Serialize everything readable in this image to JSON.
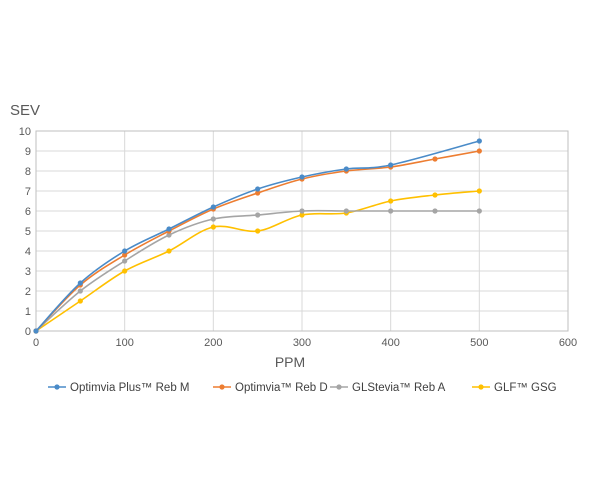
{
  "chart_data": {
    "type": "line",
    "title": "",
    "xlabel": "PPM",
    "ylabel": "SEV",
    "xlim": [
      0,
      600
    ],
    "ylim": [
      0,
      10
    ],
    "xticks": [
      "0",
      "100",
      "200",
      "300",
      "400",
      "500",
      "600"
    ],
    "yticks": [
      "0",
      "1",
      "2",
      "3",
      "4",
      "5",
      "6",
      "7",
      "8",
      "9",
      "10"
    ],
    "grid": true,
    "legend_position": "bottom",
    "series": [
      {
        "name": "Optimvia Plus™ Reb M",
        "color": "#4a8bc8",
        "x": [
          0,
          50,
          100,
          150,
          200,
          250,
          300,
          350,
          400,
          500
        ],
        "y": [
          0,
          2.4,
          4.0,
          5.1,
          6.2,
          7.1,
          7.7,
          8.1,
          8.3,
          9.5
        ]
      },
      {
        "name": "Optimvia™ Reb D",
        "color": "#ed7d31",
        "x": [
          0,
          50,
          100,
          150,
          200,
          250,
          300,
          350,
          400,
          450,
          500
        ],
        "y": [
          0,
          2.3,
          3.8,
          5.0,
          6.1,
          6.9,
          7.6,
          8.0,
          8.2,
          8.6,
          9.0
        ]
      },
      {
        "name": "GLStevia™ Reb A",
        "color": "#a5a5a5",
        "x": [
          0,
          50,
          100,
          150,
          200,
          250,
          300,
          350,
          400,
          450,
          500
        ],
        "y": [
          0,
          2.0,
          3.5,
          4.8,
          5.6,
          5.8,
          6.0,
          6.0,
          6.0,
          6.0,
          6.0
        ]
      },
      {
        "name": "GLF™ GSG",
        "color": "#ffc000",
        "x": [
          0,
          50,
          100,
          150,
          200,
          250,
          300,
          350,
          400,
          450,
          500
        ],
        "y": [
          0,
          1.5,
          3.0,
          4.0,
          5.2,
          5.0,
          5.8,
          5.9,
          6.5,
          6.8,
          7.0
        ]
      }
    ]
  }
}
